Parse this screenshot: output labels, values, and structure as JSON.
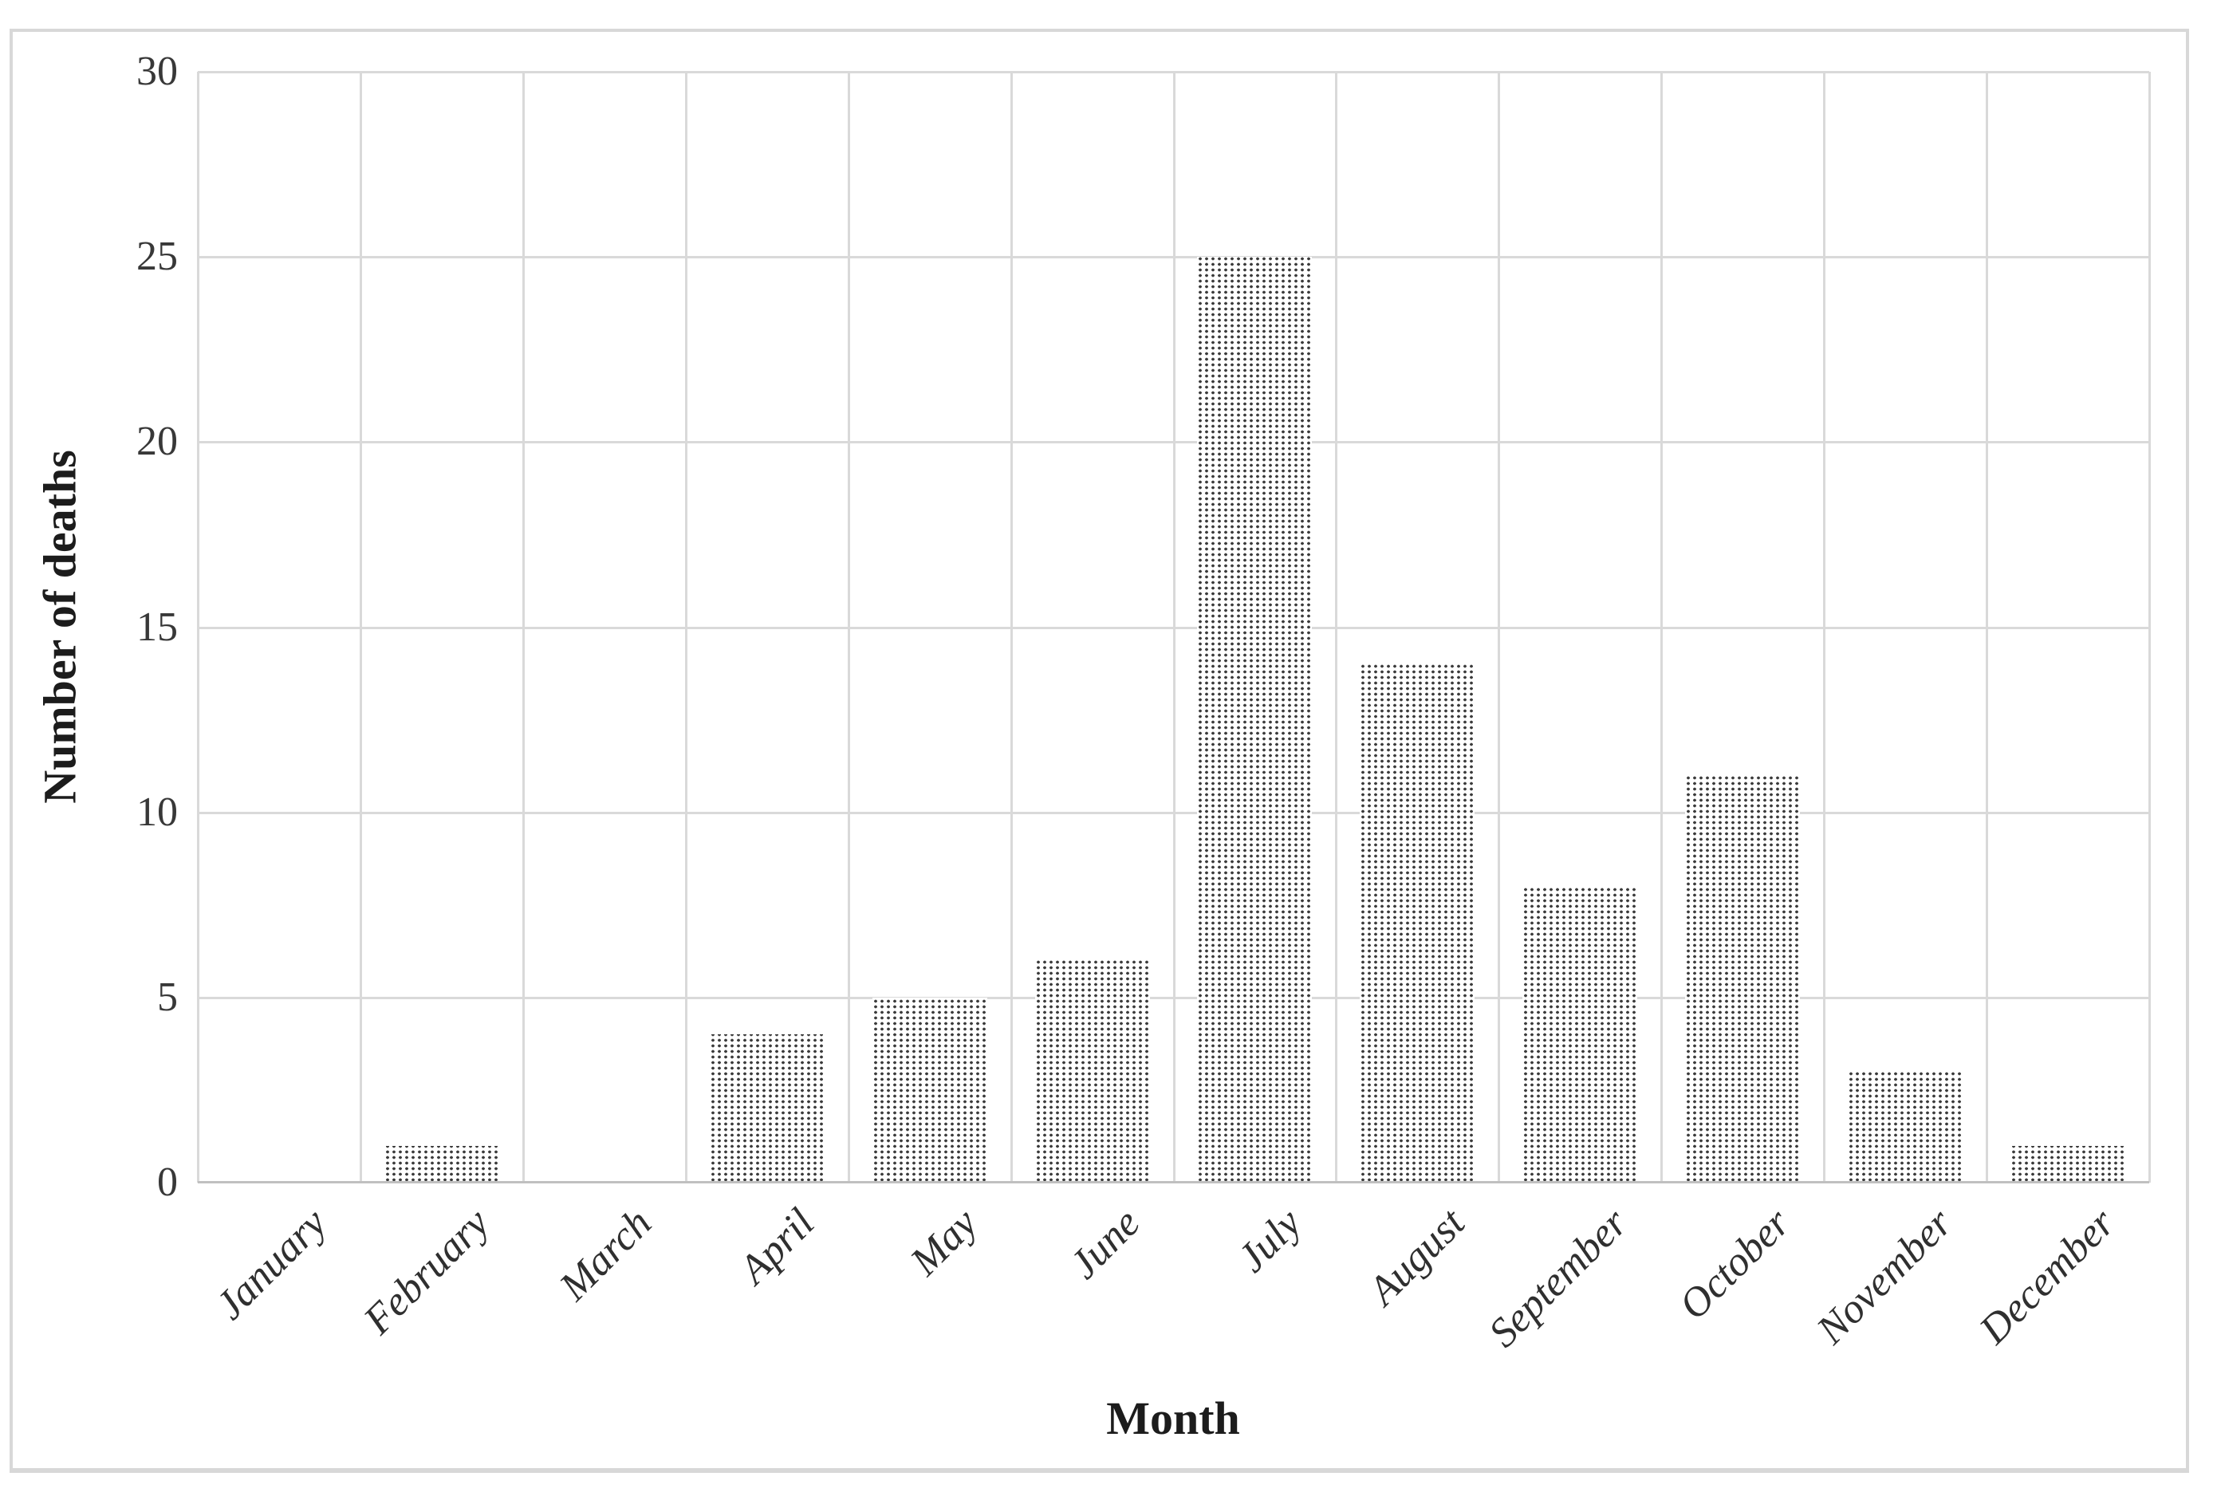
{
  "chart_data": {
    "type": "bar",
    "title": "",
    "categories": [
      "January",
      "February",
      "March",
      "April",
      "May",
      "June",
      "July",
      "August",
      "September",
      "October",
      "November",
      "December"
    ],
    "values": [
      0,
      1,
      0,
      4,
      5,
      6,
      25,
      14,
      8,
      11,
      3,
      1
    ],
    "xlabel": "Month",
    "ylabel": "Number of deaths",
    "ylim": [
      0,
      30
    ],
    "yticks": [
      0,
      5,
      10,
      15,
      20,
      25,
      30
    ],
    "grid": "on",
    "legend_position": "none",
    "bar_fill_style": "dotted-pattern",
    "colors": {
      "background": "#ffffff",
      "frame_border": "#d8d8d8",
      "gridline": "#d9d9d9",
      "axis_line": "#c0c0c0",
      "bar_dot": "#3c3c3c",
      "tick_text": "#383838",
      "title_text": "#1c1c1c"
    }
  }
}
